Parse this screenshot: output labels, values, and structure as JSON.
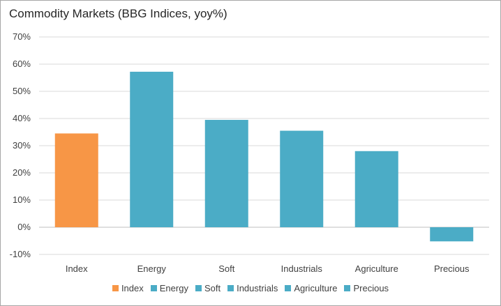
{
  "chart_data": {
    "type": "bar",
    "title": "Commodity Markets (BBG Indices, yoy%)",
    "categories": [
      "Index",
      "Energy",
      "Soft",
      "Industrials",
      "Agriculture",
      "Precious"
    ],
    "values": [
      34.5,
      57.2,
      39.5,
      35.5,
      28.0,
      -5.2
    ],
    "colors": [
      "#f79646",
      "#4bacc6",
      "#4bacc6",
      "#4bacc6",
      "#4bacc6",
      "#4bacc6"
    ],
    "ylim": [
      -10,
      70
    ],
    "yticks": [
      "-10%",
      "0%",
      "10%",
      "20%",
      "30%",
      "40%",
      "50%",
      "60%",
      "70%"
    ],
    "ytick_values": [
      -10,
      0,
      10,
      20,
      30,
      40,
      50,
      60,
      70
    ],
    "grid": true,
    "legend_position": "bottom",
    "legend": [
      "Index",
      "Energy",
      "Soft",
      "Industrials",
      "Agriculture",
      "Precious"
    ]
  }
}
